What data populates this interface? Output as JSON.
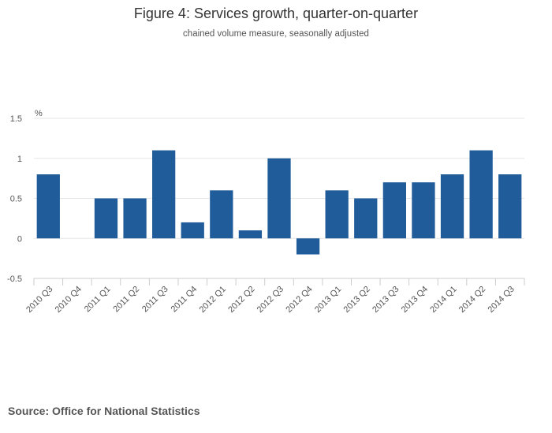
{
  "chart_data": {
    "type": "bar",
    "title": "Figure 4: Services growth, quarter-on-quarter",
    "subtitle": "chained volume measure, seasonally adjusted",
    "ylabel": "%",
    "xlabel": "",
    "ylim": [
      -0.5,
      1.5
    ],
    "yticks": [
      "1.5",
      "1",
      "0.5",
      "0",
      "-0.5"
    ],
    "ytick_values": [
      1.5,
      1,
      0.5,
      0,
      -0.5
    ],
    "grid": true,
    "categories": [
      "2010 Q3",
      "2010 Q4",
      "2011 Q1",
      "2011 Q2",
      "2011 Q3",
      "2011 Q4",
      "2012 Q1",
      "2012 Q2",
      "2012 Q3",
      "2012 Q4",
      "2013 Q1",
      "2013 Q2",
      "2013 Q3",
      "2013 Q4",
      "2014 Q1",
      "2014 Q2",
      "2014 Q3"
    ],
    "values": [
      0.8,
      0,
      0.5,
      0.5,
      1.1,
      0.2,
      0.6,
      0.1,
      1.0,
      -0.2,
      0.6,
      0.5,
      0.7,
      0.7,
      0.8,
      1.1,
      0.8
    ],
    "bar_color": "#1f5c99"
  },
  "footer": {
    "source": "Source: Office for National Statistics"
  }
}
